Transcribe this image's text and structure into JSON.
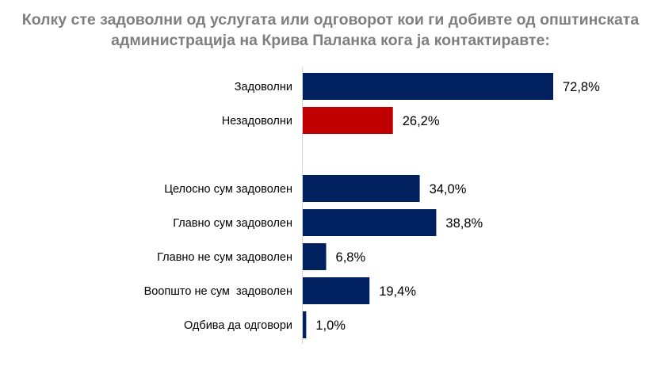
{
  "chart_data": {
    "type": "bar",
    "orientation": "horizontal",
    "title_lines": [
      "Колку сте задоволни од услугата или одговорот кои ги добивте од општинската",
      "администрација на Крива Паланка кога ја контактиравте:"
    ],
    "xlabel": "",
    "ylabel": "",
    "xlim": [
      0,
      100
    ],
    "grid": false,
    "legend": "none",
    "categories": [
      "Задоволни",
      "Незадоволни",
      "",
      "Целосно сум задоволен",
      "Главно сум задоволен",
      "Главно не сум задоволен",
      "Воопшто не сум  задоволен",
      "Одбива да одговори"
    ],
    "values": [
      72.8,
      26.2,
      null,
      34.0,
      38.8,
      6.8,
      19.4,
      1.0
    ],
    "value_labels": [
      "72,8%",
      "26,2%",
      "",
      "34,0%",
      "38,8%",
      "6,8%",
      "19,4%",
      "1,0%"
    ],
    "bar_colors": [
      "#002060",
      "#c00000",
      "",
      "#002060",
      "#002060",
      "#002060",
      "#002060",
      "#002060"
    ]
  }
}
